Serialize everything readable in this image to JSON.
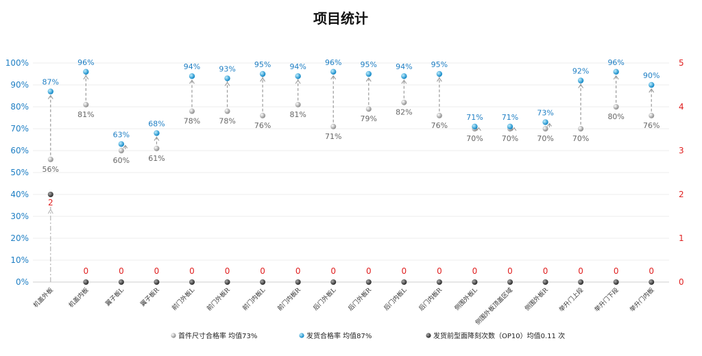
{
  "chart_data": {
    "type": "scatter",
    "title": "项目统计",
    "categories": [
      "机盖外板",
      "机盖内板",
      "翼子板L",
      "翼子板R",
      "前门外板L",
      "前门外板R",
      "前门内板L",
      "前门内板R",
      "后门外板L",
      "后门外板R",
      "后门内板L",
      "后门内板R",
      "侧围外板L",
      "侧围外板顶盖区域",
      "侧围外板R",
      "举升门上段",
      "举升门下段",
      "举升门内板"
    ],
    "series": [
      {
        "name": "首件尺寸合格率 均值73%",
        "axis": "left",
        "color": "#a8a8a8",
        "values": [
          56,
          81,
          60,
          61,
          78,
          78,
          76,
          81,
          71,
          79,
          82,
          76,
          70,
          70,
          70,
          70,
          80,
          76
        ],
        "labels": [
          "56%",
          "81%",
          "60%",
          "61%",
          "78%",
          "78%",
          "76%",
          "81%",
          "71%",
          "79%",
          "82%",
          "76%",
          "70%",
          "70%",
          "70%",
          "70%",
          "80%",
          "76%"
        ]
      },
      {
        "name": "发货合格率 均值87%",
        "axis": "left",
        "color": "#1f9bd6",
        "values": [
          87,
          96,
          63,
          68,
          94,
          93,
          95,
          94,
          96,
          95,
          94,
          95,
          71,
          71,
          73,
          92,
          96,
          90
        ],
        "labels": [
          "87%",
          "96%",
          "63%",
          "68%",
          "94%",
          "93%",
          "95%",
          "94%",
          "96%",
          "95%",
          "94%",
          "95%",
          "71%",
          "71%",
          "73%",
          "92%",
          "96%",
          "90%"
        ]
      },
      {
        "name": "发货前型面降刻次数（OP10）均值0.11 次",
        "axis": "right",
        "color": "#444444",
        "values": [
          2,
          0,
          0,
          0,
          0,
          0,
          0,
          0,
          0,
          0,
          0,
          0,
          0,
          0,
          0,
          0,
          0,
          0
        ],
        "labels": [
          "2",
          "0",
          "0",
          "0",
          "0",
          "0",
          "0",
          "0",
          "0",
          "0",
          "0",
          "0",
          "0",
          "0",
          "0",
          "0",
          "0",
          "0"
        ]
      }
    ],
    "y_left": {
      "min": 0,
      "max": 100,
      "ticks": [
        "0%",
        "10%",
        "20%",
        "30%",
        "40%",
        "50%",
        "60%",
        "70%",
        "80%",
        "90%",
        "100%"
      ]
    },
    "y_right": {
      "min": 0,
      "max": 5,
      "ticks": [
        "0",
        "1",
        "2",
        "3",
        "4",
        "5"
      ]
    },
    "legend_position": "bottom",
    "grid": true
  }
}
